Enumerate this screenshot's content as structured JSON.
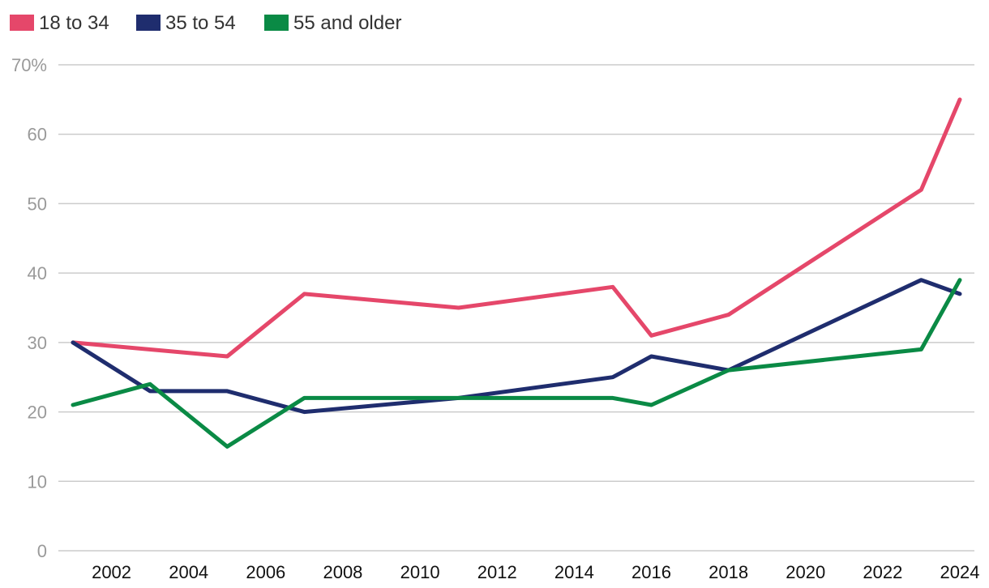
{
  "chart_data": {
    "type": "line",
    "title": "",
    "xlabel": "",
    "ylabel": "",
    "ylim": [
      0,
      70
    ],
    "y_ticks": [
      0,
      10,
      20,
      30,
      40,
      50,
      60,
      70
    ],
    "y_tick_labels": [
      "0",
      "10",
      "20",
      "30",
      "40",
      "50",
      "60",
      "70%"
    ],
    "xlim": [
      2001,
      2024
    ],
    "x_ticks": [
      2002,
      2004,
      2006,
      2008,
      2010,
      2012,
      2014,
      2016,
      2018,
      2020,
      2022,
      2024
    ],
    "x_tick_labels": [
      "2002",
      "2004",
      "2006",
      "2008",
      "2010",
      "2012",
      "2014",
      "2016",
      "2018",
      "2020",
      "2022",
      "2024"
    ],
    "grid": true,
    "legend_position": "top-left",
    "series": [
      {
        "name": "18 to 34",
        "color": "#e5476a",
        "x": [
          2001,
          2005,
          2007,
          2011,
          2015,
          2016,
          2018,
          2023,
          2024
        ],
        "values": [
          30,
          28,
          37,
          35,
          38,
          31,
          34,
          52,
          65
        ]
      },
      {
        "name": "35 to 54",
        "color": "#1f2d6e",
        "x": [
          2001,
          2003,
          2005,
          2007,
          2011,
          2015,
          2016,
          2018,
          2023,
          2024
        ],
        "values": [
          30,
          23,
          23,
          20,
          22,
          25,
          28,
          26,
          39,
          37
        ]
      },
      {
        "name": "55 and older",
        "color": "#0a8a45",
        "x": [
          2001,
          2003,
          2005,
          2007,
          2011,
          2015,
          2016,
          2018,
          2023,
          2024
        ],
        "values": [
          21,
          24,
          15,
          22,
          22,
          22,
          21,
          26,
          29,
          39
        ]
      }
    ]
  }
}
